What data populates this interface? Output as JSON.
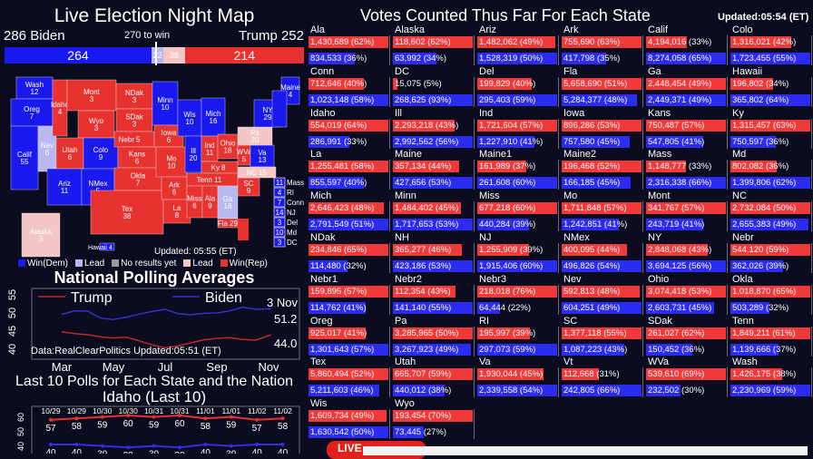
{
  "header": {
    "title": "Live Election Night Map",
    "biden_label": "286  Biden",
    "trump_label": "Trump  252",
    "to_win": "270 to win"
  },
  "ev_bar": {
    "biden_won": 264,
    "biden_lead": 22,
    "trump_lead": 38,
    "trump_won": 214,
    "biden_won_label": "264",
    "biden_lead_label": "22",
    "trump_lead_label": "38",
    "trump_won_label": "214",
    "total": 538
  },
  "colors": {
    "dem": "#1a1af0",
    "dem_lead": "#b9b9f2",
    "none": "#9a9a9a",
    "rep_lead": "#f5c6c6",
    "rep": "#e8322f",
    "bg": "#0c0c20"
  },
  "map": {
    "updated": "Updated: 05:55 (ET)",
    "legend": [
      "Win(Dem)",
      "Lead",
      "No results yet",
      "Lead",
      "Win(Rep)"
    ],
    "states": [
      {
        "name": "Wash",
        "ev": "12",
        "s": "dem"
      },
      {
        "name": "Oreg",
        "ev": "7",
        "s": "dem"
      },
      {
        "name": "Calif",
        "ev": "55",
        "s": "dem"
      },
      {
        "name": "Nev",
        "ev": "6",
        "s": "dem_lead"
      },
      {
        "name": "Idaho",
        "ev": "4",
        "s": "rep"
      },
      {
        "name": "Mont",
        "ev": "3",
        "s": "rep"
      },
      {
        "name": "Wyo",
        "ev": "3",
        "s": "rep"
      },
      {
        "name": "Utah",
        "ev": "6",
        "s": "rep"
      },
      {
        "name": "Colo",
        "ev": "9",
        "s": "dem"
      },
      {
        "name": "Ariz",
        "ev": "11",
        "s": "dem"
      },
      {
        "name": "NMex",
        "ev": "5",
        "s": "dem"
      },
      {
        "name": "NDak",
        "ev": "3",
        "s": "rep"
      },
      {
        "name": "SDak",
        "ev": "3",
        "s": "rep"
      },
      {
        "name": "Nebr",
        "ev": "5",
        "s": "rep"
      },
      {
        "name": "Kans",
        "ev": "6",
        "s": "rep"
      },
      {
        "name": "Okla",
        "ev": "7",
        "s": "rep"
      },
      {
        "name": "Tex",
        "ev": "38",
        "s": "rep"
      },
      {
        "name": "Minn",
        "ev": "10",
        "s": "dem"
      },
      {
        "name": "Iowa",
        "ev": "6",
        "s": "rep"
      },
      {
        "name": "Mo",
        "ev": "10",
        "s": "rep"
      },
      {
        "name": "Ark",
        "ev": "6",
        "s": "rep"
      },
      {
        "name": "La",
        "ev": "8",
        "s": "rep"
      },
      {
        "name": "Wis",
        "ev": "10",
        "s": "dem"
      },
      {
        "name": "Ill",
        "ev": "20",
        "s": "dem"
      },
      {
        "name": "Mich",
        "ev": "16",
        "s": "dem"
      },
      {
        "name": "Ind",
        "ev": "11",
        "s": "rep"
      },
      {
        "name": "Ohio",
        "ev": "18",
        "s": "rep"
      },
      {
        "name": "Ky",
        "ev": "8",
        "s": "rep"
      },
      {
        "name": "Tenn",
        "ev": "11",
        "s": "rep"
      },
      {
        "name": "Miss",
        "ev": "6",
        "s": "rep"
      },
      {
        "name": "Ala",
        "ev": "9",
        "s": "rep"
      },
      {
        "name": "Ga",
        "ev": "16",
        "s": "dem_lead"
      },
      {
        "name": "SC",
        "ev": "9",
        "s": "rep"
      },
      {
        "name": "Fla",
        "ev": "29",
        "s": "rep"
      },
      {
        "name": "WVa",
        "ev": "5",
        "s": "rep"
      },
      {
        "name": "Va",
        "ev": "13",
        "s": "dem"
      },
      {
        "name": "NC",
        "ev": "15",
        "s": "rep_lead"
      },
      {
        "name": "Pa",
        "ev": "20",
        "s": "rep_lead"
      },
      {
        "name": "NY",
        "ev": "29",
        "s": "dem"
      },
      {
        "name": "Maine",
        "ev": "4",
        "s": "dem"
      },
      {
        "name": "Alaska",
        "ev": "3",
        "s": "rep_lead"
      },
      {
        "name": "Hawaii",
        "ev": "4",
        "s": "dem"
      }
    ],
    "small_states": [
      {
        "ev": "11",
        "name": "Mass"
      },
      {
        "ev": "4",
        "name": "RI"
      },
      {
        "ev": "7",
        "name": "Conn"
      },
      {
        "ev": "14",
        "name": "NJ"
      },
      {
        "ev": "3",
        "name": "Del"
      },
      {
        "ev": "10",
        "name": "Md"
      },
      {
        "ev": "3",
        "name": "DC"
      }
    ]
  },
  "votes": {
    "title": "Votes Counted Thus Far For Each State",
    "updated": "Updated:05:54 (ET)",
    "states": [
      {
        "name": "Ala",
        "rep": "1,430,689 (62%)",
        "rp": 62,
        "dem": "834,533 (36%)",
        "dp": 36
      },
      {
        "name": "Alaska",
        "rep": "118,602 (62%)",
        "rp": 62,
        "dem": "63,992 (34%)",
        "dp": 34
      },
      {
        "name": "Ariz",
        "rep": "1,482,062 (49%)",
        "rp": 49,
        "dem": "1,528,319 (50%)",
        "dp": 50
      },
      {
        "name": "Ark",
        "rep": "755,690 (63%)",
        "rp": 63,
        "dem": "417,798 (35%)",
        "dp": 35
      },
      {
        "name": "Calif",
        "rep": "4,194,016 (33%)",
        "rp": 33,
        "dem": "8,274,058 (65%)",
        "dp": 65
      },
      {
        "name": "Colo",
        "rep": "1,316,021 (42%)",
        "rp": 42,
        "dem": "1,723,455 (55%)",
        "dp": 55
      },
      {
        "name": "Conn",
        "rep": "712,646 (40%)",
        "rp": 40,
        "dem": "1,023,148 (58%)",
        "dp": 58
      },
      {
        "name": "DC",
        "rep": "15,075 (5%)",
        "rp": 5,
        "dem": "268,625 (93%)",
        "dp": 93
      },
      {
        "name": "Del",
        "rep": "199,829 (40%)",
        "rp": 40,
        "dem": "295,403 (59%)",
        "dp": 59
      },
      {
        "name": "Fla",
        "rep": "5,658,690 (51%)",
        "rp": 51,
        "dem": "5,284,377 (48%)",
        "dp": 48
      },
      {
        "name": "Ga",
        "rep": "2,448,454 (49%)",
        "rp": 49,
        "dem": "2,449,371 (49%)",
        "dp": 49
      },
      {
        "name": "Hawaii",
        "rep": "196,802 (34%)",
        "rp": 34,
        "dem": "365,802 (64%)",
        "dp": 64
      },
      {
        "name": "Idaho",
        "rep": "554,019 (64%)",
        "rp": 64,
        "dem": "286,991 (33%)",
        "dp": 33
      },
      {
        "name": "Ill",
        "rep": "2,293,218 (43%)",
        "rp": 43,
        "dem": "2,992,562 (56%)",
        "dp": 56
      },
      {
        "name": "Ind",
        "rep": "1,721,604 (57%)",
        "rp": 57,
        "dem": "1,227,910 (41%)",
        "dp": 41
      },
      {
        "name": "Iowa",
        "rep": "896,286 (53%)",
        "rp": 53,
        "dem": "757,580 (45%)",
        "dp": 45
      },
      {
        "name": "Kans",
        "rep": "750,487 (57%)",
        "rp": 57,
        "dem": "547,805 (41%)",
        "dp": 41
      },
      {
        "name": "Ky",
        "rep": "1,315,457 (63%)",
        "rp": 63,
        "dem": "750,597 (36%)",
        "dp": 36
      },
      {
        "name": "La",
        "rep": "1,255,481 (58%)",
        "rp": 58,
        "dem": "855,597 (40%)",
        "dp": 40
      },
      {
        "name": "Maine",
        "rep": "357,134 (44%)",
        "rp": 44,
        "dem": "427,656 (53%)",
        "dp": 53
      },
      {
        "name": "Maine1",
        "rep": "161,989 (37%)",
        "rp": 37,
        "dem": "261,608 (60%)",
        "dp": 60
      },
      {
        "name": "Maine2",
        "rep": "196,468 (52%)",
        "rp": 52,
        "dem": "166,185 (45%)",
        "dp": 45
      },
      {
        "name": "Mass",
        "rep": "1,148,777 (33%)",
        "rp": 33,
        "dem": "2,316,338 (66%)",
        "dp": 66
      },
      {
        "name": "Md",
        "rep": "802,082 (36%)",
        "rp": 36,
        "dem": "1,399,806 (62%)",
        "dp": 62
      },
      {
        "name": "Mich",
        "rep": "2,646,423 (48%)",
        "rp": 48,
        "dem": "2,791,549 (51%)",
        "dp": 51
      },
      {
        "name": "Minn",
        "rep": "1,484,402 (45%)",
        "rp": 45,
        "dem": "1,717,653 (53%)",
        "dp": 53
      },
      {
        "name": "Miss",
        "rep": "677,218 (60%)",
        "rp": 60,
        "dem": "440,284 (39%)",
        "dp": 39
      },
      {
        "name": "Mo",
        "rep": "1,711,848 (57%)",
        "rp": 57,
        "dem": "1,242,851 (41%)",
        "dp": 41
      },
      {
        "name": "Mont",
        "rep": "341,767 (57%)",
        "rp": 57,
        "dem": "243,719 (41%)",
        "dp": 41
      },
      {
        "name": "NC",
        "rep": "2,732,084 (50%)",
        "rp": 50,
        "dem": "2,655,383 (49%)",
        "dp": 49
      },
      {
        "name": "NDak",
        "rep": "234,846 (65%)",
        "rp": 65,
        "dem": "114,480 (32%)",
        "dp": 32
      },
      {
        "name": "NH",
        "rep": "365,277 (46%)",
        "rp": 46,
        "dem": "423,186 (53%)",
        "dp": 53
      },
      {
        "name": "NJ",
        "rep": "1,255,909 (39%)",
        "rp": 39,
        "dem": "1,915,406 (60%)",
        "dp": 60
      },
      {
        "name": "NMex",
        "rep": "400,095 (44%)",
        "rp": 44,
        "dem": "496,826 (54%)",
        "dp": 54
      },
      {
        "name": "NY",
        "rep": "2,848,068 (43%)",
        "rp": 43,
        "dem": "3,694,125 (56%)",
        "dp": 56
      },
      {
        "name": "Nebr",
        "rep": "544,120 (59%)",
        "rp": 59,
        "dem": "362,026 (39%)",
        "dp": 39
      },
      {
        "name": "Nebr1",
        "rep": "159,895 (57%)",
        "rp": 57,
        "dem": "114,762 (41%)",
        "dp": 41
      },
      {
        "name": "Nebr2",
        "rep": "112,354 (43%)",
        "rp": 43,
        "dem": "141,140 (55%)",
        "dp": 55
      },
      {
        "name": "Nebr3",
        "rep": "218,018 (76%)",
        "rp": 76,
        "dem": "64,444 (22%)",
        "dp": 22
      },
      {
        "name": "Nev",
        "rep": "592,813 (48%)",
        "rp": 48,
        "dem": "604,251 (49%)",
        "dp": 49
      },
      {
        "name": "Ohio",
        "rep": "3,074,418 (53%)",
        "rp": 53,
        "dem": "2,603,731 (45%)",
        "dp": 45
      },
      {
        "name": "Okla",
        "rep": "1,018,870 (65%)",
        "rp": 65,
        "dem": "503,289 (32%)",
        "dp": 32
      },
      {
        "name": "Oreg",
        "rep": "925,017 (41%)",
        "rp": 41,
        "dem": "1,301,643 (57%)",
        "dp": 57
      },
      {
        "name": "Pa",
        "rep": "3,285,965 (50%)",
        "rp": 50,
        "dem": "3,267,923 (49%)",
        "dp": 49
      },
      {
        "name": "RI",
        "rep": "195,997 (39%)",
        "rp": 39,
        "dem": "297,073 (59%)",
        "dp": 59
      },
      {
        "name": "SC",
        "rep": "1,377,118 (55%)",
        "rp": 55,
        "dem": "1,087,223 (43%)",
        "dp": 43
      },
      {
        "name": "SDak",
        "rep": "261,027 (62%)",
        "rp": 62,
        "dem": "150,452 (36%)",
        "dp": 36
      },
      {
        "name": "Tenn",
        "rep": "1,849,211 (61%)",
        "rp": 61,
        "dem": "1,139,666 (37%)",
        "dp": 37
      },
      {
        "name": "Tex",
        "rep": "5,860,494 (52%)",
        "rp": 52,
        "dem": "5,211,603 (46%)",
        "dp": 46
      },
      {
        "name": "Utah",
        "rep": "665,707 (59%)",
        "rp": 59,
        "dem": "440,012 (38%)",
        "dp": 38
      },
      {
        "name": "Va",
        "rep": "1,930,044 (45%)",
        "rp": 45,
        "dem": "2,339,558 (54%)",
        "dp": 54
      },
      {
        "name": "Vt",
        "rep": "112,668 (31%)",
        "rp": 31,
        "dem": "242,805 (66%)",
        "dp": 66
      },
      {
        "name": "WVa",
        "rep": "539,610 (69%)",
        "rp": 69,
        "dem": "232,502 (30%)",
        "dp": 30
      },
      {
        "name": "Wash",
        "rep": "1,426,175 (38%)",
        "rp": 38,
        "dem": "2,230,969 (59%)",
        "dp": 59
      },
      {
        "name": "Wis",
        "rep": "1,609,734 (49%)",
        "rp": 49,
        "dem": "1,630,542 (50%)",
        "dp": 50
      },
      {
        "name": "Wyo",
        "rep": "193,454 (70%)",
        "rp": 70,
        "dem": "73,445 (27%)",
        "dp": 27
      }
    ]
  },
  "chart_data": [
    {
      "type": "line",
      "title": "National Polling Averages",
      "x_ticks": [
        "Mar",
        "May",
        "Jul",
        "Sep",
        "Nov"
      ],
      "x_tick_months": [
        3,
        5,
        7,
        9,
        11
      ],
      "ylim": [
        40,
        55
      ],
      "y_ticks": [
        "40",
        "45",
        "50",
        "55"
      ],
      "end_label": "3 Nov",
      "source": "Data:RealClearPolitics  Updated:05:51 (ET)",
      "legend_placement": "top",
      "series": [
        {
          "name": "Trump",
          "color": "#c0282a",
          "end_value": "44.0",
          "x": [
            3,
            3.5,
            4,
            4.5,
            5,
            5.5,
            6,
            6.5,
            7,
            7.5,
            8,
            8.5,
            9,
            9.5,
            10,
            10.5,
            11.1
          ],
          "values": [
            44.8,
            44.3,
            44.0,
            43.4,
            43.1,
            43.3,
            42.3,
            41.2,
            40.4,
            40.9,
            41.8,
            42.6,
            43.0,
            43.2,
            42.7,
            42.5,
            44.0
          ]
        },
        {
          "name": "Biden",
          "color": "#3030d0",
          "end_value": "51.2",
          "x": [
            3,
            3.5,
            4,
            4.5,
            5,
            5.5,
            6,
            6.5,
            7,
            7.5,
            8,
            8.5,
            9,
            9.5,
            10,
            10.5,
            11.1
          ],
          "values": [
            49.6,
            50.6,
            50.5,
            48.6,
            48.2,
            48.8,
            49.7,
            50.4,
            51.0,
            49.8,
            49.5,
            49.9,
            50.0,
            50.6,
            51.6,
            51.0,
            51.2
          ]
        }
      ]
    },
    {
      "type": "line",
      "title": "Idaho  (Last 10)",
      "heading": "Last 10 Polls for Each State and the Nation",
      "categories": [
        "10/29",
        "10/29",
        "10/30",
        "10/30",
        "10/31",
        "10/31",
        "11/01",
        "11/01",
        "11/02",
        "11/02"
      ],
      "y_ticks": [
        "40",
        "50",
        "60"
      ],
      "ylim": [
        35,
        62
      ],
      "series": [
        {
          "name": "Trump",
          "color": "#e8322f",
          "values": [
            57,
            58,
            59,
            60,
            59,
            60,
            58,
            59,
            57,
            58
          ],
          "labels": [
            "57",
            "58",
            "59",
            "60",
            "59",
            "60",
            "58",
            "59",
            "57",
            "58"
          ]
        },
        {
          "name": "Biden",
          "color": "#3030e0",
          "values": [
            40,
            40,
            39,
            38,
            39,
            38,
            40,
            39,
            40,
            40
          ],
          "labels": [
            "40",
            "40",
            "39",
            "38",
            "39",
            "38",
            "40",
            "39",
            "40",
            "40"
          ]
        }
      ]
    }
  ],
  "ticker": {
    "live": "LIVE"
  }
}
